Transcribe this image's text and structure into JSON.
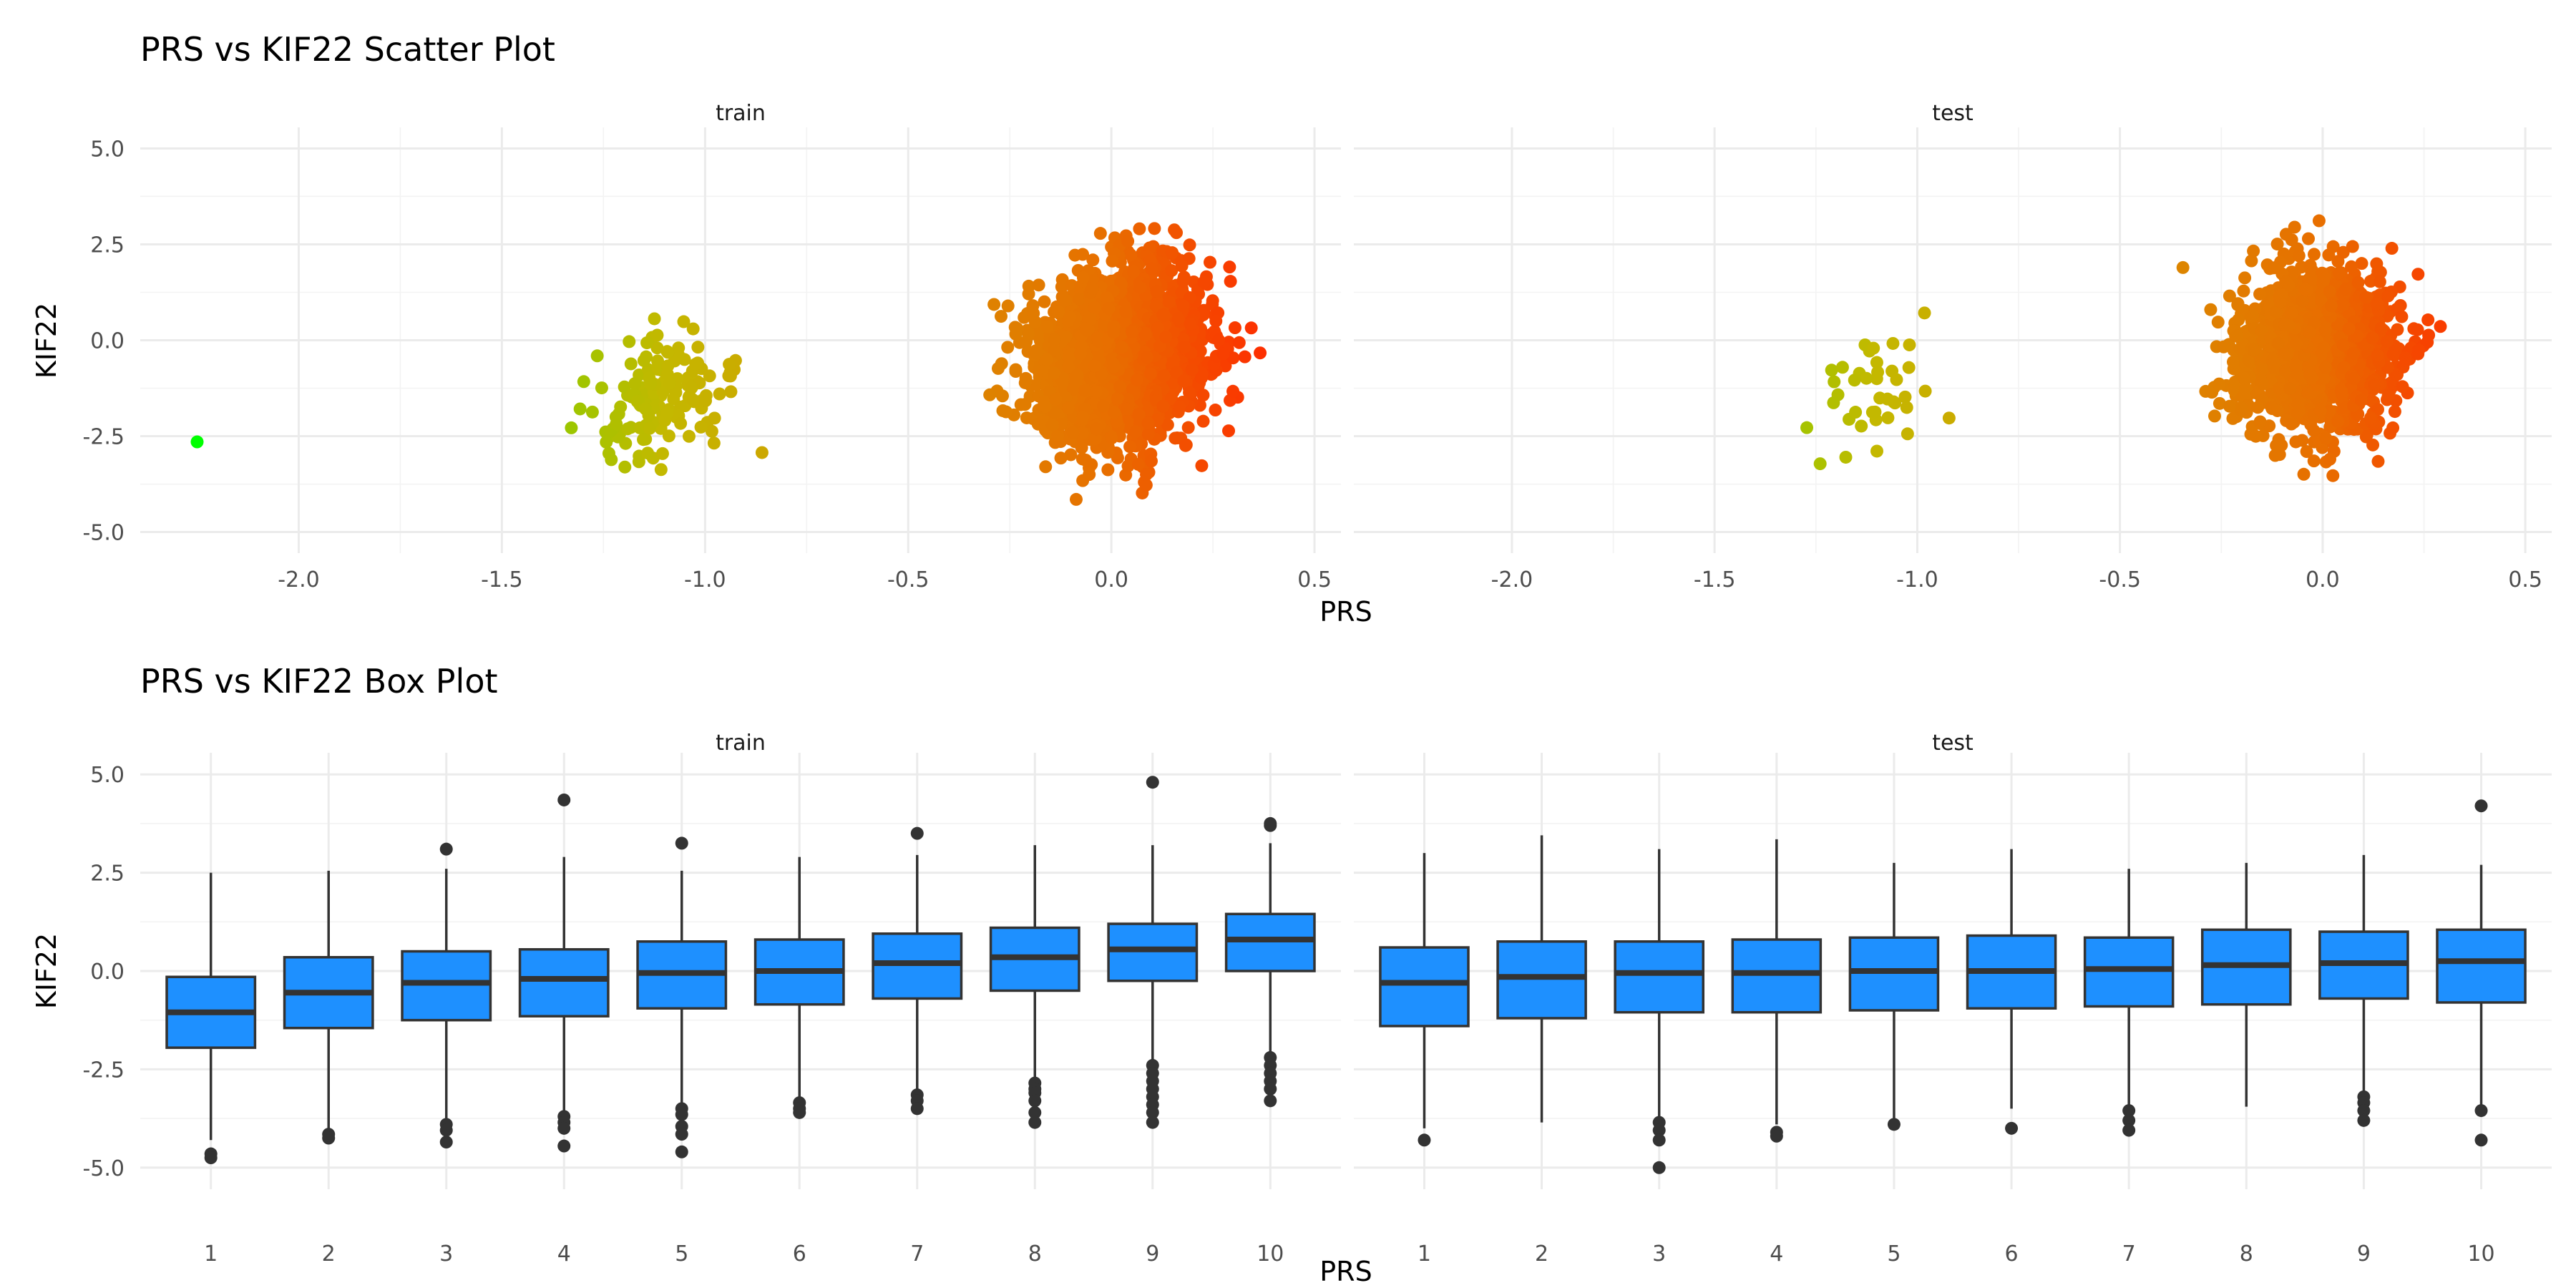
{
  "chart_data": [
    {
      "type": "scatter",
      "title": "PRS vs KIF22 Scatter Plot",
      "xlabel": "PRS",
      "ylabel": "KIF22",
      "facets": [
        "train",
        "test"
      ],
      "xlim": [
        -2.39,
        0.565
      ],
      "ylim": [
        -5.55,
        5.55
      ],
      "x_ticks": [
        "-2.0",
        "-1.5",
        "-1.0",
        "-0.5",
        "0.0",
        "0.5"
      ],
      "x_tick_values": [
        -2.0,
        -1.5,
        -1.0,
        -0.5,
        0.0,
        0.5
      ],
      "y_ticks": [
        "5.0",
        "2.5",
        "0.0",
        "-2.5",
        "-5.0"
      ],
      "y_tick_values": [
        5.0,
        2.5,
        0.0,
        -2.5,
        -5.0
      ],
      "grid": true,
      "color_by": "PRS",
      "color_scale": [
        {
          "value": -2.25,
          "color": "#00ff00"
        },
        {
          "value": -1.1,
          "color": "#c4b800"
        },
        {
          "value": 0.0,
          "color": "#e86e00"
        },
        {
          "value": 0.4,
          "color": "#ff2a00"
        }
      ],
      "panels": {
        "train": {
          "points": [
            [
              -2.25,
              -2.65
            ]
          ],
          "clusters": [
            {
              "x_mean": -1.12,
              "x_sd": 0.09,
              "y_mean": -1.6,
              "y_sd": 0.9,
              "slope": 3.0,
              "n": 150
            },
            {
              "x_mean": 0.02,
              "x_sd": 0.1,
              "y_mean": -0.4,
              "y_sd": 1.05,
              "slope": 3.0,
              "n": 2600
            }
          ]
        },
        "test": {
          "points": [],
          "clusters": [
            {
              "x_mean": -1.1,
              "x_sd": 0.08,
              "y_mean": -1.5,
              "y_sd": 0.8,
              "slope": 2.0,
              "n": 40
            },
            {
              "x_mean": -0.02,
              "x_sd": 0.1,
              "y_mean": -0.3,
              "y_sd": 1.05,
              "slope": 1.5,
              "n": 1300
            }
          ]
        }
      }
    },
    {
      "type": "box",
      "title": "PRS vs KIF22 Box Plot",
      "xlabel": "PRS",
      "ylabel": "KIF22",
      "facets": [
        "train",
        "test"
      ],
      "categories": [
        "1",
        "2",
        "3",
        "4",
        "5",
        "6",
        "7",
        "8",
        "9",
        "10"
      ],
      "ylim": [
        -5.55,
        5.55
      ],
      "y_ticks": [
        "5.0",
        "2.5",
        "0.0",
        "-2.5",
        "-5.0"
      ],
      "y_tick_values": [
        5.0,
        2.5,
        0.0,
        -2.5,
        -5.0
      ],
      "grid": true,
      "fill": "#1e90ff",
      "outline": "#333333",
      "panels": {
        "train": [
          {
            "low": -4.3,
            "q1": -1.95,
            "median": -1.05,
            "q3": -0.15,
            "high": 2.5,
            "outliers": [
              -4.65,
              -4.75
            ]
          },
          {
            "low": -4.1,
            "q1": -1.45,
            "median": -0.55,
            "q3": 0.35,
            "high": 2.55,
            "outliers": [
              -4.15,
              -4.25
            ]
          },
          {
            "low": -3.8,
            "q1": -1.25,
            "median": -0.3,
            "q3": 0.5,
            "high": 2.6,
            "outliers": [
              3.1,
              -3.9,
              -4.05,
              -4.35
            ]
          },
          {
            "low": -3.65,
            "q1": -1.15,
            "median": -0.2,
            "q3": 0.55,
            "high": 2.9,
            "outliers": [
              4.35,
              -3.7,
              -3.85,
              -4.0,
              -4.45
            ]
          },
          {
            "low": -3.4,
            "q1": -0.95,
            "median": -0.05,
            "q3": 0.75,
            "high": 2.55,
            "outliers": [
              3.25,
              -3.5,
              -3.65,
              -3.95,
              -4.15,
              -4.6
            ]
          },
          {
            "low": -3.3,
            "q1": -0.85,
            "median": 0.0,
            "q3": 0.8,
            "high": 2.9,
            "outliers": [
              -3.35,
              -3.5,
              -3.6
            ]
          },
          {
            "low": -3.1,
            "q1": -0.7,
            "median": 0.2,
            "q3": 0.95,
            "high": 2.95,
            "outliers": [
              3.5,
              -3.15,
              -3.3,
              -3.5
            ]
          },
          {
            "low": -2.8,
            "q1": -0.5,
            "median": 0.35,
            "q3": 1.1,
            "high": 3.2,
            "outliers": [
              -2.85,
              -3.0,
              -3.1,
              -3.3,
              -3.6,
              -3.85
            ]
          },
          {
            "low": -2.35,
            "q1": -0.25,
            "median": 0.55,
            "q3": 1.2,
            "high": 3.2,
            "outliers": [
              4.8,
              -2.4,
              -2.6,
              -2.8,
              -3.0,
              -3.2,
              -3.4,
              -3.6,
              -3.85
            ]
          },
          {
            "low": -2.15,
            "q1": 0.0,
            "median": 0.8,
            "q3": 1.45,
            "high": 3.25,
            "outliers": [
              3.7,
              3.75,
              -2.2,
              -2.4,
              -2.6,
              -2.8,
              -3.0,
              -3.3
            ]
          }
        ],
        "test": [
          {
            "low": -4.0,
            "q1": -1.4,
            "median": -0.3,
            "q3": 0.6,
            "high": 3.0,
            "outliers": [
              -4.3
            ]
          },
          {
            "low": -3.85,
            "q1": -1.2,
            "median": -0.15,
            "q3": 0.75,
            "high": 3.45,
            "outliers": []
          },
          {
            "low": -3.8,
            "q1": -1.05,
            "median": -0.05,
            "q3": 0.75,
            "high": 3.1,
            "outliers": [
              -3.85,
              -4.05,
              -4.3,
              -5.0
            ]
          },
          {
            "low": -3.9,
            "q1": -1.05,
            "median": -0.05,
            "q3": 0.8,
            "high": 3.35,
            "outliers": [
              -4.1,
              -4.2
            ]
          },
          {
            "low": -3.75,
            "q1": -1.0,
            "median": 0.0,
            "q3": 0.85,
            "high": 2.75,
            "outliers": [
              -3.9
            ]
          },
          {
            "low": -3.5,
            "q1": -0.95,
            "median": 0.0,
            "q3": 0.9,
            "high": 3.1,
            "outliers": [
              -4.0
            ]
          },
          {
            "low": -3.45,
            "q1": -0.9,
            "median": 0.05,
            "q3": 0.85,
            "high": 2.6,
            "outliers": [
              -3.55,
              -3.8,
              -4.05
            ]
          },
          {
            "low": -3.45,
            "q1": -0.85,
            "median": 0.15,
            "q3": 1.05,
            "high": 2.75,
            "outliers": []
          },
          {
            "low": -3.1,
            "q1": -0.7,
            "median": 0.2,
            "q3": 1.0,
            "high": 2.95,
            "outliers": [
              -3.2,
              -3.35,
              -3.55,
              -3.8
            ]
          },
          {
            "low": -3.5,
            "q1": -0.8,
            "median": 0.25,
            "q3": 1.05,
            "high": 2.7,
            "outliers": [
              4.2,
              -3.55,
              -4.3
            ]
          }
        ]
      }
    }
  ]
}
